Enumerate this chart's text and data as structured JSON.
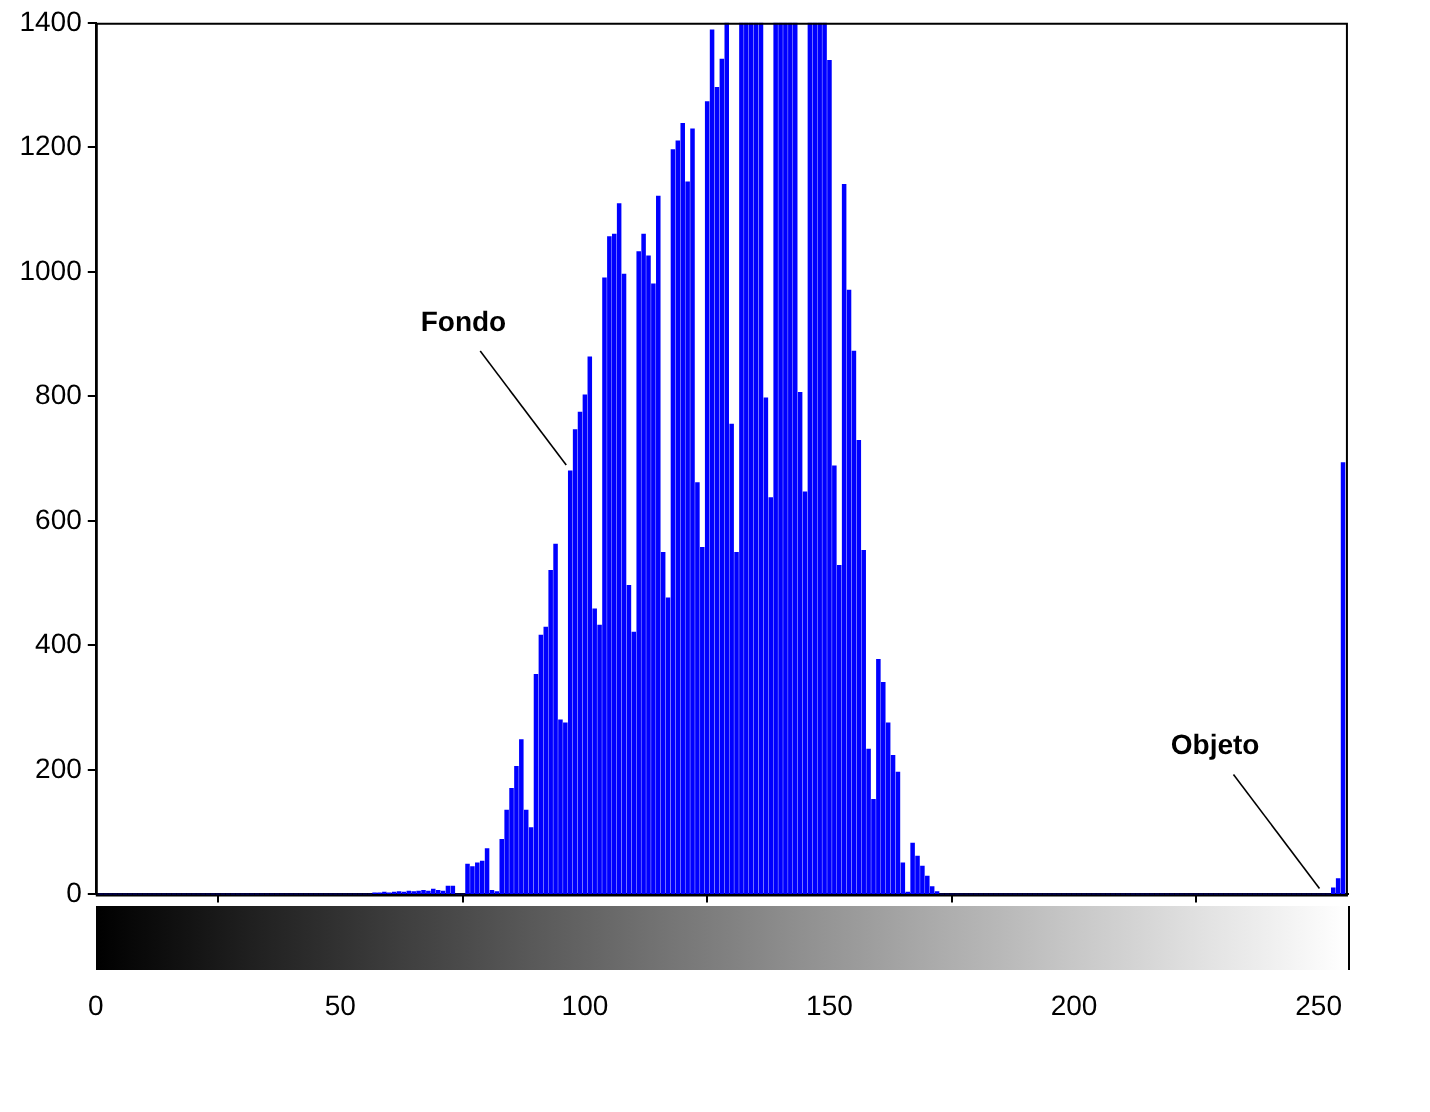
{
  "chart_data": {
    "type": "bar",
    "color": "#0000ff",
    "x": [
      0,
      1,
      2,
      3,
      4,
      5,
      6,
      7,
      8,
      9,
      10,
      11,
      12,
      13,
      14,
      15,
      16,
      17,
      18,
      19,
      20,
      21,
      22,
      23,
      24,
      25,
      26,
      27,
      28,
      29,
      30,
      31,
      32,
      33,
      34,
      35,
      36,
      37,
      38,
      39,
      40,
      41,
      42,
      43,
      44,
      45,
      46,
      47,
      48,
      49,
      50,
      51,
      52,
      53,
      54,
      55,
      56,
      57,
      58,
      59,
      60,
      61,
      62,
      63,
      64,
      65,
      66,
      67,
      68,
      69,
      70,
      71,
      72,
      73,
      74,
      75,
      76,
      77,
      78,
      79,
      80,
      81,
      82,
      83,
      84,
      85,
      86,
      87,
      88,
      89,
      90,
      91,
      92,
      93,
      94,
      95,
      96,
      97,
      98,
      99,
      100,
      101,
      102,
      103,
      104,
      105,
      106,
      107,
      108,
      109,
      110,
      111,
      112,
      113,
      114,
      115,
      116,
      117,
      118,
      119,
      120,
      121,
      122,
      123,
      124,
      125,
      126,
      127,
      128,
      129,
      130,
      131,
      132,
      133,
      134,
      135,
      136,
      137,
      138,
      139,
      140,
      141,
      142,
      143,
      144,
      145,
      146,
      147,
      148,
      149,
      150,
      151,
      152,
      153,
      154,
      155,
      156,
      157,
      158,
      159,
      160,
      161,
      162,
      163,
      164,
      165,
      166,
      167,
      168,
      169,
      170,
      171,
      172,
      173,
      174,
      175,
      176,
      177,
      178,
      179,
      180,
      181,
      182,
      183,
      184,
      185,
      186,
      187,
      188,
      189,
      190,
      191,
      192,
      193,
      194,
      195,
      196,
      197,
      198,
      199,
      200,
      201,
      202,
      203,
      204,
      205,
      206,
      207,
      208,
      209,
      210,
      211,
      212,
      213,
      214,
      215,
      216,
      217,
      218,
      219,
      220,
      221,
      222,
      223,
      224,
      225,
      226,
      227,
      228,
      229,
      230,
      231,
      232,
      233,
      234,
      235,
      236,
      237,
      238,
      239,
      240,
      241,
      242,
      243,
      244,
      245,
      246,
      247,
      248,
      249,
      250,
      251,
      252,
      253,
      254,
      255
    ],
    "values": [
      0,
      0,
      0,
      0,
      0,
      0,
      0,
      0,
      0,
      0,
      0,
      0,
      0,
      0,
      0,
      0,
      0,
      0,
      0,
      0,
      0,
      0,
      0,
      0,
      0,
      0,
      0,
      0,
      0,
      0,
      0,
      0,
      0,
      0,
      0,
      0,
      0,
      0,
      0,
      0,
      0,
      0,
      0,
      0,
      0,
      0,
      0,
      0,
      0,
      0,
      0,
      0,
      0,
      0,
      0,
      0,
      0,
      2,
      2,
      3,
      2,
      3,
      4,
      3,
      5,
      4,
      5,
      6,
      5,
      8,
      6,
      5,
      13,
      13,
      0,
      0,
      48,
      44,
      50,
      53,
      73,
      6,
      4,
      88,
      135,
      170,
      205,
      248,
      135,
      107,
      353,
      416,
      429,
      520,
      562,
      280,
      275,
      680,
      746,
      774,
      802,
      863,
      458,
      432,
      990,
      1056,
      1060,
      1109,
      996,
      496,
      421,
      1032,
      1060,
      1025,
      980,
      1121,
      549,
      476,
      1196,
      1210,
      1238,
      1144,
      1229,
      661,
      557,
      1273,
      1388,
      1296,
      1341,
      1400,
      755,
      549,
      1400,
      1400,
      1400,
      1400,
      1400,
      797,
      637,
      1400,
      1400,
      1400,
      1400,
      1400,
      806,
      646,
      1400,
      1400,
      1400,
      1400,
      1339,
      688,
      528,
      1140,
      970,
      872,
      729,
      552,
      233,
      152,
      377,
      340,
      275,
      223,
      196,
      50,
      3,
      82,
      61,
      45,
      29,
      12,
      4,
      0,
      0,
      0,
      0,
      0,
      0,
      0,
      0,
      0,
      0,
      0,
      0,
      0,
      0,
      0,
      0,
      0,
      0,
      0,
      0,
      0,
      0,
      0,
      0,
      0,
      0,
      0,
      0,
      0,
      0,
      0,
      0,
      0,
      0,
      0,
      0,
      0,
      0,
      0,
      0,
      0,
      0,
      0,
      0,
      0,
      0,
      0,
      0,
      0,
      0,
      0,
      0,
      0,
      0,
      0,
      0,
      0,
      0,
      0,
      0,
      0,
      0,
      0,
      0,
      0,
      0,
      0,
      0,
      0,
      0,
      0,
      0,
      0,
      0,
      0,
      0,
      0,
      0,
      0,
      0,
      10,
      25,
      693
    ],
    "xlim": [
      0,
      256
    ],
    "xticks": [
      0,
      50,
      100,
      150,
      200,
      250
    ],
    "ylim": [
      0,
      1400
    ],
    "yticks": [
      0,
      200,
      400,
      600,
      800,
      1000,
      1200,
      1400
    ],
    "annotations": [
      {
        "text": "Fondo",
        "x": 97,
        "y": 680
      },
      {
        "text": "Objeto",
        "x": 251,
        "y": 0
      }
    ]
  }
}
